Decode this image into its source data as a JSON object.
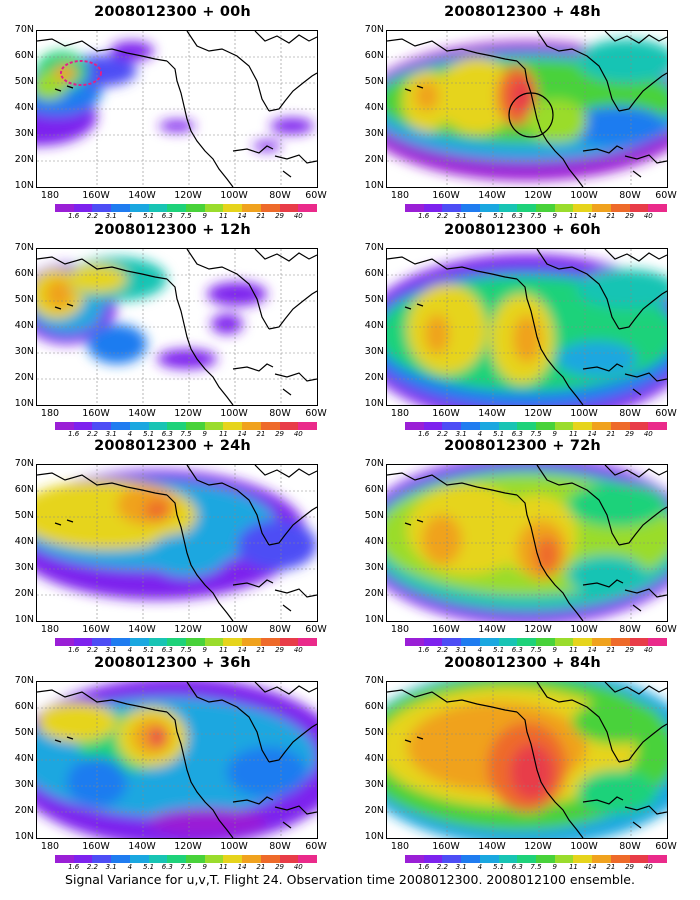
{
  "caption": "Signal Variance for u,v,T. Flight 24. Observation time 2008012300. 2008012100 ensemble.",
  "lat_labels": [
    "70N",
    "60N",
    "50N",
    "40N",
    "30N",
    "20N",
    "10N"
  ],
  "lon_labels": [
    "180",
    "160W",
    "140W",
    "120W",
    "100W",
    "80W",
    "60W"
  ],
  "colorbar": {
    "labels": [
      "1.6",
      "2.2",
      "3.1",
      "4",
      "5.1",
      "6.3",
      "7.5",
      "9",
      "11",
      "14",
      "21",
      "29",
      "40"
    ],
    "colors": [
      "#9a1fd6",
      "#7d22ee",
      "#4d4df5",
      "#1f7cf0",
      "#1aa7e0",
      "#18c4b4",
      "#1ed27a",
      "#48d23a",
      "#9adc2c",
      "#e6d41c",
      "#f0a21e",
      "#ee6a2a",
      "#e83c48",
      "#ea2a8a"
    ]
  },
  "panels": [
    {
      "title": "2008012300 + 00h"
    },
    {
      "title": "2008012300 + 48h"
    },
    {
      "title": "2008012300 + 12h"
    },
    {
      "title": "2008012300 + 60h"
    },
    {
      "title": "2008012300 + 24h"
    },
    {
      "title": "2008012300 + 72h"
    },
    {
      "title": "2008012300 + 36h"
    },
    {
      "title": "2008012300 + 84h"
    }
  ]
}
